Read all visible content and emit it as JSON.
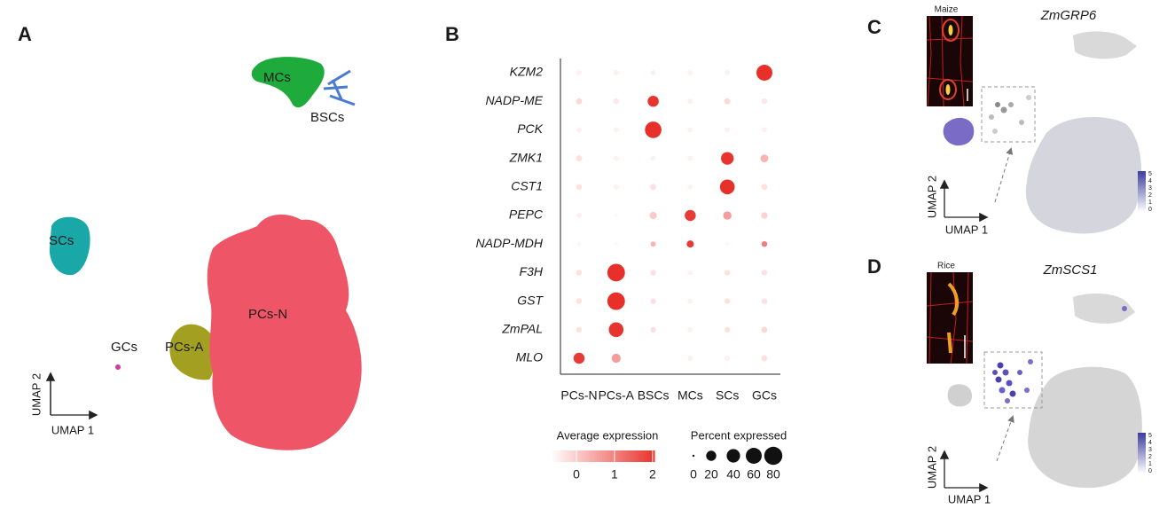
{
  "panels": {
    "A": {
      "label": "A",
      "clusters": [
        "MCs",
        "BSCs",
        "SCs",
        "GCs",
        "PCs-A",
        "PCs-N"
      ],
      "x_axis": "UMAP 1",
      "y_axis": "UMAP 2"
    },
    "B": {
      "label": "B"
    },
    "C": {
      "label": "C",
      "species": "Maize",
      "gene": "ZmGRP6",
      "x_axis": "UMAP 1",
      "y_axis": "UMAP 2",
      "colorbar_ticks": [
        "5",
        "4",
        "3",
        "2",
        "1",
        "0"
      ]
    },
    "D": {
      "label": "D",
      "species": "Rice",
      "gene": "ZmSCS1",
      "x_axis": "UMAP 1",
      "y_axis": "UMAP 2",
      "colorbar_ticks": [
        "5",
        "4",
        "3",
        "2",
        "1",
        "0"
      ]
    }
  },
  "chart_data": {
    "type": "dot",
    "categories": [
      "PCs-N",
      "PCs-A",
      "BSCs",
      "MCs",
      "SCs",
      "GCs"
    ],
    "series": [
      {
        "name": "KZM2",
        "values": [
          -0.5,
          -0.5,
          -0.5,
          -0.5,
          -0.5,
          2.05
        ],
        "percent": [
          3,
          3,
          3,
          3,
          3,
          60
        ]
      },
      {
        "name": "NADP-ME",
        "values": [
          -0.2,
          -0.4,
          2.0,
          -0.5,
          -0.2,
          -0.4
        ],
        "percent": [
          5,
          4,
          25,
          3,
          5,
          4
        ]
      },
      {
        "name": "PCK",
        "values": [
          -0.5,
          -0.5,
          2.05,
          -0.5,
          -0.5,
          -0.5
        ],
        "percent": [
          3,
          3,
          65,
          3,
          3,
          3
        ]
      },
      {
        "name": "ZMK1",
        "values": [
          -0.3,
          -0.5,
          -0.5,
          -0.5,
          2.0,
          0.3
        ],
        "percent": [
          5,
          3,
          3,
          3,
          35,
          10
        ]
      },
      {
        "name": "CST1",
        "values": [
          -0.3,
          -0.5,
          -0.3,
          -0.5,
          2.05,
          -0.3
        ],
        "percent": [
          4,
          3,
          5,
          3,
          50,
          5
        ]
      },
      {
        "name": "PEPC",
        "values": [
          -0.5,
          -0.6,
          0.0,
          1.9,
          0.6,
          -0.1
        ],
        "percent": [
          3,
          1,
          8,
          25,
          12,
          6
        ]
      },
      {
        "name": "NADP-MDH",
        "values": [
          -0.6,
          -0.6,
          0.3,
          1.9,
          -0.6,
          1.0
        ],
        "percent": [
          1,
          1,
          3,
          8,
          1,
          4
        ]
      },
      {
        "name": "F3H",
        "values": [
          -0.3,
          2.05,
          -0.3,
          -0.5,
          -0.3,
          -0.3
        ],
        "percent": [
          4,
          75,
          4,
          3,
          4,
          4
        ]
      },
      {
        "name": "GST",
        "values": [
          -0.3,
          2.05,
          -0.3,
          -0.5,
          -0.3,
          -0.3
        ],
        "percent": [
          4,
          75,
          4,
          3,
          4,
          4
        ]
      },
      {
        "name": "ZmPAL",
        "values": [
          -0.3,
          2.0,
          -0.3,
          -0.5,
          -0.3,
          -0.2
        ],
        "percent": [
          4,
          50,
          4,
          3,
          4,
          5
        ]
      },
      {
        "name": "MLO",
        "values": [
          1.9,
          0.6,
          -0.7,
          -0.5,
          -0.5,
          -0.3
        ],
        "percent": [
          25,
          15,
          1,
          3,
          3,
          5
        ]
      }
    ],
    "color": "#e8302a",
    "low_color": "#ffffff",
    "colorbar_title": "Average expression",
    "colorlim": [
      -0.7,
      2.05
    ],
    "colorticks": [
      0,
      1,
      2
    ],
    "size_title": "Percent expressed",
    "size_ticks": [
      0,
      20,
      40,
      60,
      80
    ]
  }
}
